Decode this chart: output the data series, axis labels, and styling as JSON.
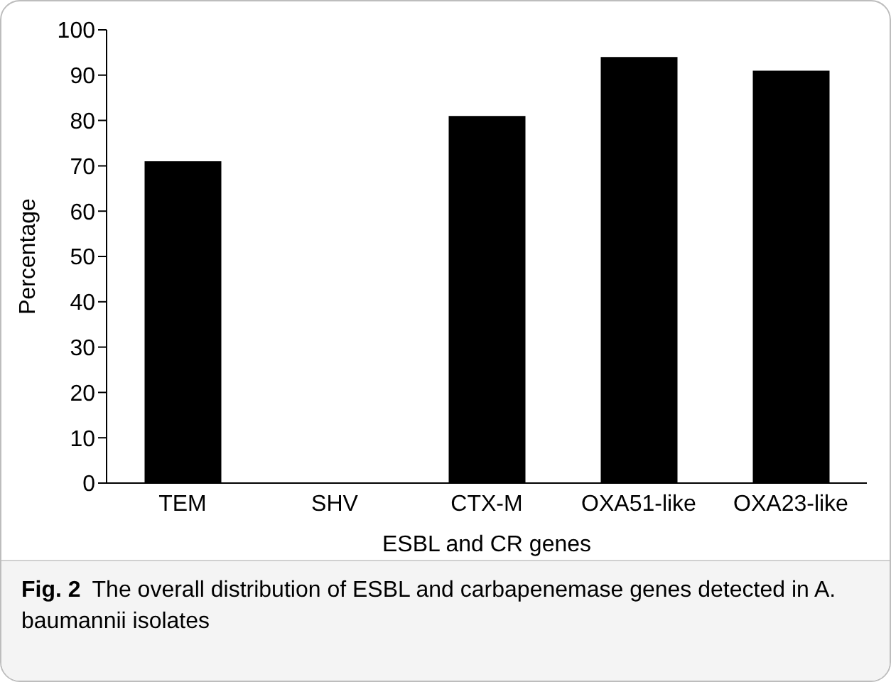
{
  "chart_data": {
    "type": "bar",
    "xlabel": "ESBL and CR genes",
    "ylabel": "Percentage",
    "categories": [
      "TEM",
      "SHV",
      "CTX-M",
      "OXA51-like",
      "OXA23-like"
    ],
    "values": [
      71,
      0,
      81,
      94,
      91
    ],
    "color": "#000000",
    "ylim": [
      0,
      100
    ],
    "yticks": [
      0,
      10,
      20,
      30,
      40,
      50,
      60,
      70,
      80,
      90,
      100
    ],
    "grid": false,
    "legend": false,
    "annotations": [
      "Fig. 2",
      "The overall distribution of ESBL and carbapenemase genes detected in A. baumannii isolates"
    ]
  }
}
